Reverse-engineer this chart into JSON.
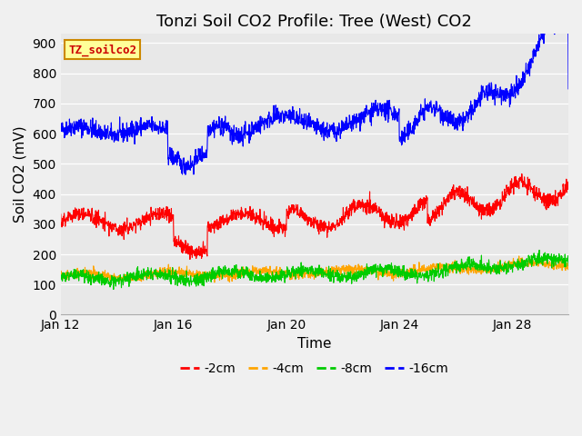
{
  "title": "Tonzi Soil CO2 Profile: Tree (West) CO2",
  "xlabel": "Time",
  "ylabel": "Soil CO2 (mV)",
  "ylim": [
    0,
    930
  ],
  "yticks": [
    0,
    100,
    200,
    300,
    400,
    500,
    600,
    700,
    800,
    900
  ],
  "xstart": 0,
  "xend": 18,
  "xtick_labels": [
    "Jan 12",
    "Jan 16",
    "Jan 20",
    "Jan 24",
    "Jan 28"
  ],
  "xtick_positions": [
    0,
    4,
    8,
    12,
    16
  ],
  "legend_label": "TZ_soilco2",
  "series_labels": [
    "-2cm",
    "-4cm",
    "-8cm",
    "-16cm"
  ],
  "series_colors": [
    "#ff0000",
    "#ffa500",
    "#00cc00",
    "#0000ff"
  ],
  "fig_bg_color": "#f0f0f0",
  "plot_bg_color": "#e8e8e8",
  "grid_color": "#ffffff",
  "title_fontsize": 13,
  "axis_fontsize": 11,
  "tick_fontsize": 10,
  "legend_box_color": "#ffff99",
  "legend_box_edge": "#cc8800"
}
